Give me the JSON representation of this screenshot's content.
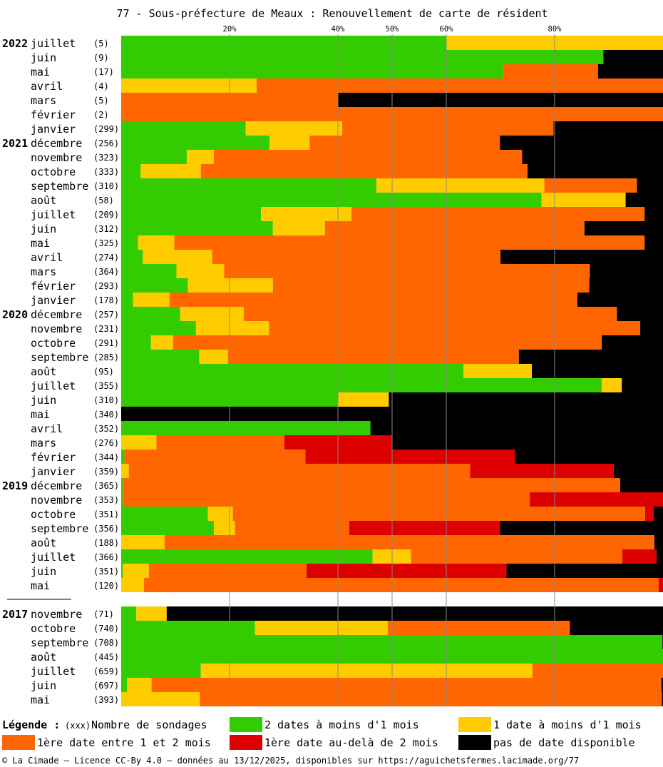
{
  "chart_data": {
    "type": "bar",
    "orientation": "horizontal",
    "stacked": true,
    "normalized": true,
    "title": "77 - Sous-préfecture de Meaux : Renouvellement de carte de résident",
    "x_ticks": [
      "20%",
      "40%",
      "50%",
      "60%",
      "80%"
    ],
    "x_tick_values": [
      20,
      40,
      50,
      60,
      80
    ],
    "xlim": [
      0,
      100
    ],
    "grid": true,
    "series": [
      {
        "key": "s1",
        "name": "2 dates à moins d'1 mois",
        "color": "#33cc00"
      },
      {
        "key": "s2",
        "name": "1 date à moins d'1 mois",
        "color": "#ffcc00"
      },
      {
        "key": "s3",
        "name": "1ère date entre 1 et 2 mois",
        "color": "#ff6600"
      },
      {
        "key": "s4",
        "name": "1ère date au-delà de 2 mois",
        "color": "#dd0000"
      },
      {
        "key": "s5",
        "name": "pas de date disponible",
        "color": "#000000"
      }
    ],
    "groups": [
      {
        "rows": [
          {
            "year": "2022",
            "month": "juillet",
            "count": "(5)",
            "values": [
              60,
              40,
              0,
              0,
              0
            ]
          },
          {
            "year": "",
            "month": "juin",
            "count": "(9)",
            "values": [
              89,
              0,
              0,
              0,
              11
            ]
          },
          {
            "year": "",
            "month": "mai",
            "count": "(17)",
            "values": [
              70.5,
              0,
              17.5,
              0,
              12
            ]
          },
          {
            "year": "",
            "month": "avril",
            "count": "(4)",
            "values": [
              0,
              25,
              75,
              0,
              0
            ]
          },
          {
            "year": "",
            "month": "mars",
            "count": "(5)",
            "values": [
              0,
              0,
              40,
              0,
              60
            ]
          },
          {
            "year": "",
            "month": "février",
            "count": "(2)",
            "values": [
              0,
              0,
              100,
              0,
              0
            ]
          },
          {
            "year": "",
            "month": "janvier",
            "count": "(299)",
            "values": [
              23,
              17.8,
              39,
              0,
              20.2
            ]
          },
          {
            "year": "2021",
            "month": "décembre",
            "count": "(256)",
            "values": [
              27.4,
              7.4,
              35.1,
              0,
              30.1
            ]
          },
          {
            "year": "",
            "month": "novembre",
            "count": "(323)",
            "values": [
              12.1,
              5,
              56.9,
              0,
              26
            ]
          },
          {
            "year": "",
            "month": "octobre",
            "count": "(333)",
            "values": [
              3.6,
              11.1,
              60.3,
              0,
              25
            ]
          },
          {
            "year": "",
            "month": "septembre",
            "count": "(310)",
            "values": [
              47.1,
              31,
              17.1,
              0,
              4.8
            ]
          },
          {
            "year": "",
            "month": "août",
            "count": "(58)",
            "values": [
              77.6,
              15.5,
              0,
              0,
              6.9
            ]
          },
          {
            "year": "",
            "month": "juillet",
            "count": "(209)",
            "values": [
              25.8,
              16.7,
              54.1,
              0,
              3.4
            ]
          },
          {
            "year": "",
            "month": "juin",
            "count": "(312)",
            "values": [
              28,
              9.6,
              47.9,
              0,
              14.5
            ]
          },
          {
            "year": "",
            "month": "mai",
            "count": "(325)",
            "values": [
              3.1,
              6.7,
              86.8,
              0,
              3.4
            ]
          },
          {
            "year": "",
            "month": "avril",
            "count": "(274)",
            "values": [
              4,
              12.8,
              53.2,
              0,
              30
            ]
          },
          {
            "year": "",
            "month": "mars",
            "count": "(364)",
            "values": [
              10.2,
              8.8,
              67.5,
              0,
              13.5
            ]
          },
          {
            "year": "",
            "month": "février",
            "count": "(293)",
            "values": [
              12.3,
              15.7,
              58.4,
              0,
              13.6
            ]
          },
          {
            "year": "",
            "month": "janvier",
            "count": "(178)",
            "values": [
              2.2,
              6.7,
              75.3,
              0,
              15.8
            ]
          },
          {
            "year": "2020",
            "month": "décembre",
            "count": "(257)",
            "values": [
              10.9,
              11.7,
              68.9,
              0,
              8.5
            ]
          },
          {
            "year": "",
            "month": "novembre",
            "count": "(231)",
            "values": [
              13.8,
              13.5,
              68.5,
              0,
              4.2
            ]
          },
          {
            "year": "",
            "month": "octobre",
            "count": "(291)",
            "values": [
              5.5,
              4.1,
              79.1,
              0,
              11.3
            ]
          },
          {
            "year": "",
            "month": "septembre",
            "count": "(285)",
            "values": [
              14.4,
              5.3,
              53.7,
              0,
              26.6
            ]
          },
          {
            "year": "",
            "month": "août",
            "count": "(95)",
            "values": [
              63.2,
              12.6,
              0,
              0,
              24.2
            ]
          },
          {
            "year": "",
            "month": "juillet",
            "count": "(355)",
            "values": [
              88.7,
              3.7,
              0,
              0,
              7.6
            ]
          },
          {
            "year": "",
            "month": "juin",
            "count": "(310)",
            "values": [
              40,
              9.4,
              0,
              0,
              50.6
            ]
          },
          {
            "year": "",
            "month": "mai",
            "count": "(340)",
            "values": [
              0,
              0,
              0,
              0,
              100
            ]
          },
          {
            "year": "",
            "month": "avril",
            "count": "(352)",
            "values": [
              46,
              0,
              0,
              0,
              54
            ]
          },
          {
            "year": "",
            "month": "mars",
            "count": "(276)",
            "values": [
              0,
              6.5,
              23.6,
              19.9,
              50
            ]
          },
          {
            "year": "",
            "month": "février",
            "count": "(344)",
            "values": [
              0.6,
              0,
              33.4,
              38.7,
              27.3
            ]
          },
          {
            "year": "",
            "month": "janvier",
            "count": "(359)",
            "values": [
              0,
              1.4,
              63,
              26.5,
              9.1
            ]
          },
          {
            "year": "2019",
            "month": "décembre",
            "count": "(365)",
            "values": [
              0.3,
              0,
              91.8,
              0,
              7.9
            ]
          },
          {
            "year": "",
            "month": "novembre",
            "count": "(353)",
            "values": [
              0.3,
              0,
              75.1,
              24.6,
              0
            ]
          },
          {
            "year": "",
            "month": "octobre",
            "count": "(351)",
            "values": [
              16,
              4.6,
              76.1,
              1.6,
              1.7
            ]
          },
          {
            "year": "",
            "month": "septembre",
            "count": "(356)",
            "values": [
              17.1,
              3.9,
              21.1,
              27.8,
              30.1
            ]
          },
          {
            "year": "",
            "month": "août",
            "count": "(188)",
            "values": [
              0,
              8,
              90.4,
              0,
              1.6
            ]
          },
          {
            "year": "",
            "month": "juillet",
            "count": "(366)",
            "values": [
              46.4,
              7.1,
              39,
              6.3,
              1.2
            ]
          },
          {
            "year": "",
            "month": "juin",
            "count": "(351)",
            "values": [
              0.3,
              4.8,
              29.1,
              36.9,
              28.9
            ]
          },
          {
            "year": "",
            "month": "mai",
            "count": "(120)",
            "values": [
              0,
              4.2,
              95,
              0.8,
              0
            ]
          }
        ]
      },
      {
        "rows": [
          {
            "year": "2017",
            "month": "novembre",
            "count": "(71)",
            "values": [
              2.8,
              5.6,
              0,
              0,
              91.6
            ]
          },
          {
            "year": "",
            "month": "octobre",
            "count": "(740)",
            "values": [
              24.7,
              24.5,
              33.6,
              0,
              17.2
            ]
          },
          {
            "year": "",
            "month": "septembre",
            "count": "(708)",
            "values": [
              99.9,
              0,
              0,
              0,
              0.1
            ]
          },
          {
            "year": "",
            "month": "août",
            "count": "(445)",
            "values": [
              100,
              0,
              0,
              0,
              0
            ]
          },
          {
            "year": "",
            "month": "juillet",
            "count": "(659)",
            "values": [
              14.7,
              61.2,
              24.1,
              0,
              0
            ]
          },
          {
            "year": "",
            "month": "juin",
            "count": "(697)",
            "values": [
              1.1,
              4.5,
              94.1,
              0,
              0.3
            ]
          },
          {
            "year": "",
            "month": "mai",
            "count": "(393)",
            "values": [
              0,
              14.5,
              85.3,
              0,
              0.2
            ]
          }
        ]
      }
    ]
  },
  "legend": {
    "label": "Légende :",
    "count_code": "(xxx)",
    "count_label": "Nombre de sondages",
    "items": [
      {
        "label": "2 dates à moins d'1 mois",
        "color": "#33cc00"
      },
      {
        "label": "1 date à moins d'1 mois",
        "color": "#ffcc00"
      },
      {
        "label": "1ère date entre 1 et 2 mois",
        "color": "#ff6600"
      },
      {
        "label": "1ère date au-delà de 2 mois",
        "color": "#dd0000"
      },
      {
        "label": "pas de date disponible",
        "color": "#000000"
      }
    ]
  },
  "footer": "© La Cimade – Licence CC-By 4.0 – données au 13/12/2025, disponibles sur https://aguichetsfermes.lacimade.org/77"
}
